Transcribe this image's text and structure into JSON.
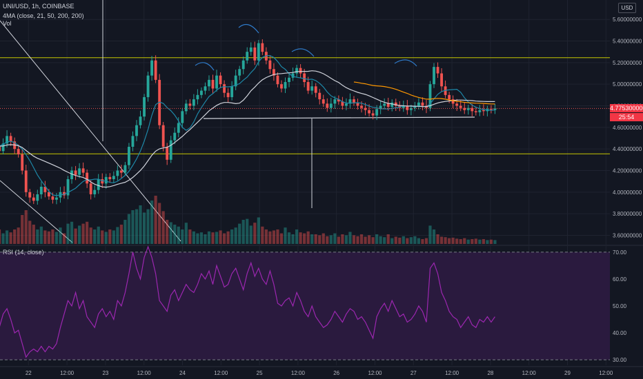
{
  "legend": {
    "symbol": "UNI/USD, 1h, COINBASE",
    "ma_label": "4MA (close, 21, 50, 200, 200)",
    "vol_label": "Vol",
    "rsi_label": "RSI (14, close)"
  },
  "currency": "USD",
  "current_price": "4.775300000",
  "countdown": "25:54",
  "colors": {
    "background": "#131722",
    "up": "#26a69a",
    "down": "#ef5350",
    "ma21": "#1e88a8",
    "ma50": "#d1d4dc",
    "ma200": "#ff9800",
    "level": "#c8c800",
    "rsi_line": "#9c27b0",
    "rsi_band": "#2a1a3e"
  },
  "chart_data": [
    {
      "type": "candlestick",
      "title": "UNI/USD, 1h, COINBASE",
      "ylim": [
        3.52,
        5.78
      ],
      "y_ticks": [
        "5.60000000",
        "5.40000000",
        "5.20000000",
        "5.00000000",
        "4.80000000",
        "4.60000000",
        "4.40000000",
        "4.20000000",
        "4.00000000",
        "3.80000000",
        "3.60000000"
      ],
      "y_tick_values": [
        5.6,
        5.4,
        5.2,
        5.0,
        4.8,
        4.6,
        4.4,
        4.2,
        4.0,
        3.8,
        3.6
      ],
      "x_tick_labels": [
        "22",
        "12:00",
        "23",
        "12:00",
        "24",
        "12:00",
        "25",
        "12:00",
        "26",
        "12:00",
        "27",
        "12:00",
        "28",
        "12:00",
        "29",
        "12:00"
      ],
      "x_tick_hours": [
        0,
        12,
        24,
        36,
        48,
        60,
        72,
        84,
        96,
        108,
        120,
        132,
        144,
        156,
        168,
        180
      ],
      "horizontal_levels": [
        5.245,
        4.355
      ],
      "neckline": 4.7,
      "close": [
        4.3,
        4.35,
        4.42,
        4.5,
        4.55,
        4.48,
        4.42,
        4.38,
        4.45,
        4.52,
        4.47,
        4.4,
        4.35,
        4.2,
        4.0,
        3.95,
        3.92,
        3.98,
        4.05,
        4.0,
        3.96,
        3.93,
        3.95,
        4.0,
        3.97,
        4.12,
        4.2,
        4.16,
        4.22,
        4.18,
        4.08,
        3.98,
        4.02,
        4.12,
        4.08,
        4.14,
        4.12,
        4.15,
        4.2,
        4.18,
        4.25,
        4.42,
        4.52,
        4.62,
        4.7,
        4.88,
        5.08,
        5.22,
        5.04,
        4.62,
        4.42,
        4.3,
        4.48,
        4.55,
        4.64,
        4.75,
        4.82,
        4.8,
        4.86,
        4.9,
        4.94,
        4.98,
        5.04,
        4.96,
        5.08,
        5.0,
        4.92,
        4.88,
        4.98,
        5.08,
        5.14,
        5.22,
        5.3,
        5.34,
        5.22,
        5.38,
        5.3,
        5.22,
        5.14,
        5.08,
        5.0,
        4.96,
        5.02,
        5.06,
        5.1,
        5.15,
        5.1,
        5.02,
        4.94,
        4.98,
        4.92,
        4.86,
        4.82,
        4.78,
        4.82,
        4.86,
        4.84,
        4.8,
        4.82,
        4.86,
        4.83,
        4.8,
        4.78,
        4.76,
        4.73,
        4.71,
        4.77,
        4.8,
        4.82,
        4.79,
        4.83,
        4.8,
        4.78,
        4.8,
        4.76,
        4.78,
        4.8,
        4.83,
        4.8,
        4.78,
        5.0,
        5.16,
        5.1,
        4.98,
        4.9,
        4.86,
        4.82,
        4.8,
        4.78,
        4.76,
        4.78,
        4.75,
        4.74,
        4.76,
        4.75,
        4.77,
        4.76,
        4.775
      ],
      "volume": [
        0.3,
        0.28,
        0.26,
        0.28,
        0.32,
        0.25,
        0.26,
        0.3,
        0.22,
        0.28,
        0.24,
        0.3,
        0.34,
        0.6,
        0.7,
        0.48,
        0.4,
        0.3,
        0.36,
        0.28,
        0.26,
        0.3,
        0.25,
        0.34,
        0.22,
        0.42,
        0.46,
        0.32,
        0.38,
        0.42,
        0.46,
        0.34,
        0.3,
        0.36,
        0.28,
        0.25,
        0.3,
        0.28,
        0.35,
        0.4,
        0.5,
        0.62,
        0.7,
        0.72,
        0.8,
        0.65,
        0.72,
        0.9,
        1.0,
        0.85,
        0.68,
        0.5,
        0.45,
        0.4,
        0.36,
        0.3,
        0.44,
        0.3,
        0.26,
        0.22,
        0.24,
        0.2,
        0.26,
        0.24,
        0.25,
        0.28,
        0.22,
        0.26,
        0.3,
        0.34,
        0.42,
        0.5,
        0.52,
        0.38,
        0.44,
        0.55,
        0.36,
        0.3,
        0.26,
        0.28,
        0.3,
        0.22,
        0.34,
        0.24,
        0.2,
        0.3,
        0.24,
        0.22,
        0.26,
        0.2,
        0.2,
        0.18,
        0.22,
        0.16,
        0.18,
        0.22,
        0.15,
        0.2,
        0.18,
        0.25,
        0.18,
        0.16,
        0.2,
        0.15,
        0.18,
        0.14,
        0.2,
        0.16,
        0.14,
        0.2,
        0.12,
        0.15,
        0.13,
        0.16,
        0.12,
        0.14,
        0.16,
        0.12,
        0.1,
        0.12,
        0.38,
        0.3,
        0.2,
        0.15,
        0.14,
        0.12,
        0.13,
        0.11,
        0.1,
        0.12,
        0.09,
        0.1,
        0.11,
        0.09,
        0.1,
        0.08,
        0.09,
        0.08
      ]
    },
    {
      "type": "line",
      "title": "RSI (14, close)",
      "ylim": [
        28,
        72
      ],
      "y_ticks": [
        "70.00",
        "60.00",
        "50.00",
        "40.00",
        "30.00"
      ],
      "y_tick_values": [
        70,
        60,
        50,
        40,
        30
      ],
      "bands": [
        30,
        70
      ],
      "series": [
        {
          "name": "RSI (14, close)",
          "values": [
            42,
            44,
            47,
            41,
            44,
            46,
            44,
            42,
            47,
            49,
            45,
            40,
            41,
            36,
            31,
            33,
            34,
            33,
            35,
            33,
            35,
            34,
            36,
            42,
            47,
            52,
            50,
            55,
            49,
            52,
            46,
            44,
            42,
            47,
            49,
            46,
            48,
            45,
            52,
            50,
            55,
            62,
            70,
            64,
            60,
            68,
            72,
            68,
            62,
            52,
            50,
            48,
            54,
            56,
            52,
            55,
            58,
            56,
            55,
            58,
            62,
            60,
            63,
            58,
            65,
            61,
            57,
            58,
            62,
            64,
            60,
            56,
            62,
            66,
            61,
            64,
            60,
            58,
            63,
            58,
            51,
            50,
            52,
            53,
            50,
            55,
            52,
            48,
            46,
            50,
            46,
            44,
            42,
            43,
            45,
            48,
            46,
            44,
            47,
            49,
            48,
            45,
            46,
            44,
            41,
            38,
            46,
            49,
            51,
            48,
            52,
            49,
            46,
            47,
            44,
            45,
            47,
            50,
            48,
            44,
            64,
            66,
            62,
            55,
            52,
            48,
            46,
            45,
            42,
            44,
            46,
            43,
            42,
            45,
            44,
            46,
            44,
            46
          ]
        }
      ]
    }
  ]
}
